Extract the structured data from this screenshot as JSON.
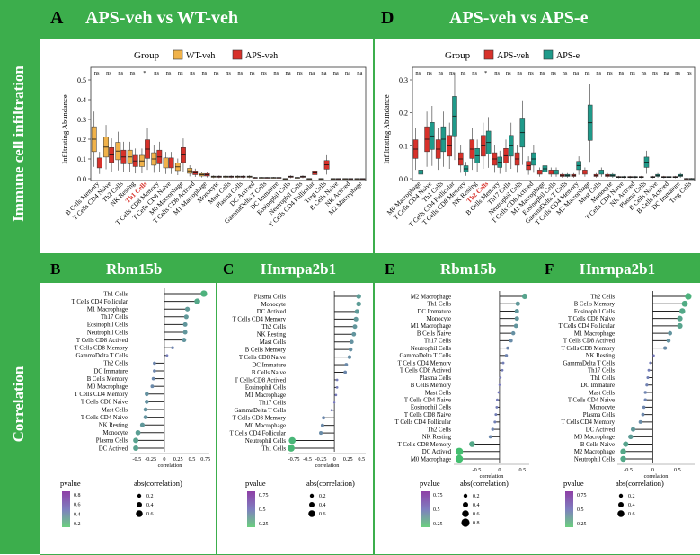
{
  "row_labels": {
    "top": "Immune cell infiltration",
    "bottom": "Correlation"
  },
  "panels_top": [
    {
      "label": "A",
      "title": "APS-veh vs WT-veh"
    },
    {
      "label": "D",
      "title": "APS-veh vs APS-e"
    }
  ],
  "panels_bottom": [
    {
      "label": "B",
      "title": "Rbm15b"
    },
    {
      "label": "C",
      "title": "Hnrnpa2b1"
    },
    {
      "label": "E",
      "title": "Rbm15b"
    },
    {
      "label": "F",
      "title": "Hnrnpa2b1"
    }
  ],
  "colors": {
    "green": "#3cae4c",
    "orange": "#f0b24a",
    "red": "#d7312a",
    "teal": "#1f9a8a",
    "highlight": "#d7312a"
  },
  "chart_data": [
    {
      "id": "A",
      "type": "box",
      "legend_title": "Group",
      "legend": [
        "WT-veh",
        "APS-veh"
      ],
      "ylabel": "Infiltrating Abundance",
      "ylim": [
        0,
        0.5
      ],
      "yticks": [
        0.0,
        0.1,
        0.2,
        0.3,
        0.4,
        0.5
      ],
      "highlight": "Th1 Cells",
      "categories": [
        "B Cells Memory",
        "T Cells CD4 Naive",
        "Th2 Cells",
        "NK Resting",
        "Th1 Cells",
        "T Cells CD8 Memory",
        "T Cells CD8 Naive",
        "M0 Macrophage",
        "T Cells CD8 Actived",
        "M1 Macrophage",
        "Monocyte",
        "Mast Cells",
        "Plasma Cells",
        "DC Actived",
        "GammaDelta T Cells",
        "DC Immature",
        "Eosinophil Cells",
        "Neutrophil Cells",
        "T Cells CD4 Follicular",
        "Treg Cells",
        "B Cells Naive",
        "NK Actived",
        "M2 Macrophage"
      ],
      "significance": [
        "ns",
        "ns",
        "ns",
        "ns",
        "*",
        "ns",
        "ns",
        "ns",
        "ns",
        "ns",
        "ns",
        "ns",
        "ns",
        "ns",
        "ns",
        "ns",
        "na",
        "ns",
        "na",
        "na",
        "na",
        "na",
        "na"
      ],
      "series": [
        {
          "name": "WT-veh",
          "values": [
            0.2,
            0.16,
            0.14,
            0.11,
            0.09,
            0.1,
            0.08,
            0.06,
            0.04,
            0.02,
            0.01,
            0.01,
            0.01,
            0.01,
            0.005,
            0.005,
            0.0,
            0.005,
            0.0,
            0.0,
            0.0,
            0.0,
            0.0
          ]
        },
        {
          "name": "APS-veh",
          "values": [
            0.08,
            0.12,
            0.11,
            0.09,
            0.15,
            0.11,
            0.08,
            0.12,
            0.03,
            0.02,
            0.01,
            0.01,
            0.01,
            0.005,
            0.005,
            0.005,
            0.01,
            0.01,
            0.03,
            0.07,
            0.0,
            0.0,
            0.0
          ]
        }
      ]
    },
    {
      "id": "D",
      "type": "box",
      "legend_title": "Group",
      "legend": [
        "APS-veh",
        "APS-e"
      ],
      "ylabel": "Infiltrating Abundance",
      "ylim": [
        0,
        0.3
      ],
      "yticks": [
        0.0,
        0.1,
        0.2,
        0.3
      ],
      "highlight": "Th2 Cells",
      "categories": [
        "M0 Macrophage",
        "T Cells CD4 Naive",
        "Th1 Cells",
        "T Cells CD4 Follicular",
        "T Cells CD8 Memory",
        "NK Resting",
        "Th2 Cells",
        "B Cells Memory",
        "Th17 Cells",
        "Neutrophil Cells",
        "T Cells CD8 Actived",
        "M1 Macrophage",
        "Eosinophil Cells",
        "GammaDelta T Cells",
        "T Cells CD4 Memory",
        "M2 Macrophage",
        "Mast Cells",
        "Monocyte",
        "T Cells CD8 Naive",
        "NK Actived",
        "Plasma Cells",
        "B Cells Naive",
        "B Cells Actived",
        "DC Immature",
        "Treg Cells"
      ],
      "significance": [
        "ns",
        "ns",
        "ns",
        "ns",
        "ns",
        "ns",
        "*",
        "ns",
        "ns",
        "ns",
        "ns",
        "ns",
        "ns",
        "ns",
        "na",
        "ns",
        "ns",
        "ns",
        "ns",
        "ns",
        "ns",
        "ns",
        "na",
        "ns",
        "ns"
      ],
      "series": [
        {
          "name": "APS-veh",
          "values": [
            0.09,
            0.12,
            0.09,
            0.1,
            0.06,
            0.09,
            0.1,
            0.06,
            0.07,
            0.06,
            0.04,
            0.02,
            0.02,
            0.01,
            0.01,
            0.02,
            0.01,
            0.01,
            0.005,
            0.005,
            0.005,
            0.005,
            0.005,
            0.005,
            0.0
          ]
        },
        {
          "name": "APS-e",
          "values": [
            0.02,
            0.13,
            0.12,
            0.19,
            0.03,
            0.07,
            0.11,
            0.05,
            0.1,
            0.14,
            0.06,
            0.03,
            0.02,
            0.01,
            0.04,
            0.17,
            0.02,
            0.01,
            0.005,
            0.005,
            0.05,
            0.01,
            0.005,
            0.01,
            0.0
          ]
        }
      ]
    },
    {
      "id": "B",
      "type": "lollipop",
      "xlabel": "correlation",
      "xticks": [
        -0.5,
        -0.25,
        0.0,
        0.25,
        0.5,
        0.75
      ],
      "xlim": [
        -0.62,
        0.82
      ],
      "categories": [
        "Th1 Cells",
        "T Cells CD4 Follicular",
        "M1 Macrophage",
        "Th17 Cells",
        "Eosinophil Cells",
        "Neutrophil Cells",
        "T Cells CD8 Actived",
        "T Cells CD8 Memory",
        "GammaDelta T Cells",
        "Th2 Cells",
        "DC Immature",
        "B Cells Memory",
        "M0 Macrophage",
        "T Cells CD4 Memory",
        "T Cells CD8 Naive",
        "Mast Cells",
        "T Cells CD4 Naive",
        "NK Resting",
        "Monocyte",
        "Plasma Cells",
        "DC Actived"
      ],
      "values": [
        0.72,
        0.6,
        0.42,
        0.4,
        0.38,
        0.38,
        0.36,
        0.15,
        0.05,
        -0.18,
        -0.18,
        -0.2,
        -0.22,
        -0.32,
        -0.32,
        -0.34,
        -0.34,
        -0.4,
        -0.48,
        -0.52,
        -0.52
      ],
      "legend_pvalue": {
        "title": "pvalue",
        "ticks": [
          0.8,
          0.6,
          0.4,
          0.2
        ]
      },
      "legend_size": {
        "title": "abs(correlation)",
        "ticks": [
          0.2,
          0.4,
          0.6
        ]
      }
    },
    {
      "id": "C",
      "type": "lollipop",
      "xlabel": "correlation",
      "xticks": [
        -0.75,
        -0.5,
        -0.25,
        0.0,
        0.25,
        0.5
      ],
      "xlim": [
        -0.85,
        0.58
      ],
      "categories": [
        "Plasma Cells",
        "Monocyte",
        "DC Actived",
        "T Cells CD4 Memory",
        "Th2 Cells",
        "NK Resting",
        "Mast Cells",
        "B Cells Memory",
        "T Cells CD8 Naive",
        "DC Immature",
        "B Cells Naive",
        "T Cells CD8 Actived",
        "Eosinophil Cells",
        "M1 Macrophage",
        "Th17 Cells",
        "GammaDelta T Cells",
        "T Cells CD8 Memory",
        "M0 Macrophage",
        "T Cells CD4 Follicular",
        "Neutrophil Cells",
        "Th1 Cells"
      ],
      "values": [
        0.45,
        0.45,
        0.42,
        0.4,
        0.38,
        0.36,
        0.32,
        0.3,
        0.28,
        0.22,
        0.2,
        0.05,
        0.05,
        0.03,
        0.0,
        -0.05,
        -0.2,
        -0.22,
        -0.25,
        -0.78,
        -0.8
      ],
      "legend_pvalue": {
        "title": "pvalue",
        "ticks": [
          0.75,
          0.5,
          0.25
        ]
      },
      "legend_size": {
        "title": "abs(correlation)",
        "ticks": [
          0.2,
          0.4,
          0.6
        ]
      }
    },
    {
      "id": "E",
      "type": "lollipop",
      "xlabel": "correlation",
      "xticks": [
        -0.5,
        0.0,
        0.5
      ],
      "xlim": [
        -1.0,
        0.65
      ],
      "categories": [
        "M2 Macrophage",
        "Th1 Cells",
        "DC Immature",
        "Monocyte",
        "M1 Macrophage",
        "B Cells Naive",
        "Th17 Cells",
        "Neutrophil Cells",
        "GammaDelta T Cells",
        "T Cells CD4 Memory",
        "T Cells CD8 Actived",
        "Plasma Cells",
        "B Cells Memory",
        "Mast Cells",
        "T Cells CD4 Naive",
        "Eosinophil Cells",
        "T Cells CD8 Naive",
        "T Cells CD4 Follicular",
        "Th2 Cells",
        "NK Resting",
        "T Cells CD8 Memory",
        "DC Actived",
        "M0 Macrophage"
      ],
      "values": [
        0.55,
        0.4,
        0.38,
        0.38,
        0.36,
        0.3,
        0.25,
        0.18,
        0.15,
        0.08,
        0.06,
        0.02,
        0.0,
        -0.02,
        -0.05,
        -0.06,
        -0.08,
        -0.1,
        -0.15,
        -0.2,
        -0.6,
        -0.88,
        -0.88
      ],
      "legend_pvalue": {
        "title": "pvalue",
        "ticks": [
          0.75,
          0.5,
          0.25
        ]
      },
      "legend_size": {
        "title": "abs(correlation)",
        "ticks": [
          0.2,
          0.4,
          0.6,
          0.8
        ]
      }
    },
    {
      "id": "F",
      "type": "lollipop",
      "xlabel": "correlation",
      "xticks": [
        -0.5,
        0.0,
        0.5
      ],
      "xlim": [
        -0.72,
        0.85
      ],
      "categories": [
        "Th2 Cells",
        "B Cells Memory",
        "Eosinophil Cells",
        "T Cells CD8 Naive",
        "T Cells CD4 Follicular",
        "M1 Macrophage",
        "T Cells CD8 Actived",
        "T Cells CD8 Memory",
        "NK Resting",
        "GammaDelta T Cells",
        "Th17 Cells",
        "Th1 Cells",
        "DC Immature",
        "Mast Cells",
        "T Cells CD4 Naive",
        "Monocyte",
        "Plasma Cells",
        "T Cells CD4 Memory",
        "DC Actived",
        "M0 Macrophage",
        "B Cells Naive",
        "M2 Macrophage",
        "Neutrophil Cells"
      ],
      "values": [
        0.72,
        0.65,
        0.6,
        0.55,
        0.55,
        0.35,
        0.32,
        0.25,
        0.02,
        -0.05,
        -0.08,
        -0.1,
        -0.12,
        -0.15,
        -0.15,
        -0.18,
        -0.2,
        -0.25,
        -0.4,
        -0.45,
        -0.55,
        -0.6,
        -0.6
      ],
      "legend_pvalue": {
        "title": "pvalue",
        "ticks": [
          0.75,
          0.5,
          0.25
        ]
      },
      "legend_size": {
        "title": "abs(correlation)",
        "ticks": [
          0.2,
          0.4,
          0.6
        ]
      }
    }
  ]
}
